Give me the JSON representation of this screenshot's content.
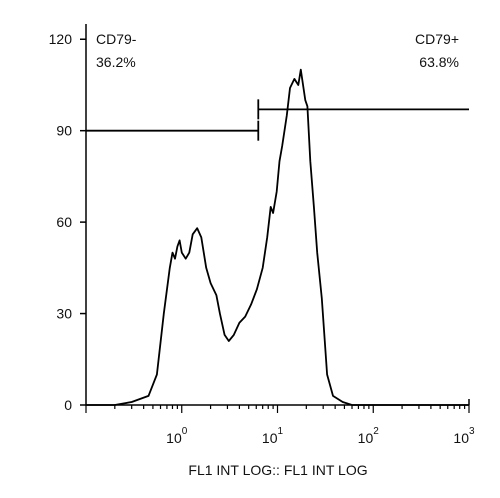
{
  "chart_data": {
    "type": "area",
    "title": "",
    "xlabel": "FL1 INT LOG:: FL1 INT LOG",
    "ylabel": "",
    "x_scale": "log",
    "xlim": [
      0.1,
      1000
    ],
    "ylim": [
      0,
      125
    ],
    "grid": false,
    "x_ticks": [
      {
        "value": 1,
        "base": "10",
        "exp": "0"
      },
      {
        "value": 10,
        "base": "10",
        "exp": "1"
      },
      {
        "value": 100,
        "base": "10",
        "exp": "2"
      },
      {
        "value": 1000,
        "base": "10",
        "exp": "3"
      }
    ],
    "y_ticks": [
      0,
      30,
      60,
      90,
      120
    ],
    "series": [
      {
        "values": [
          [
            0.1,
            0
          ],
          [
            0.2,
            0
          ],
          [
            0.3,
            1
          ],
          [
            0.45,
            3
          ],
          [
            0.55,
            10
          ],
          [
            0.65,
            30
          ],
          [
            0.75,
            45
          ],
          [
            0.8,
            50
          ],
          [
            0.85,
            48
          ],
          [
            0.9,
            52
          ],
          [
            0.95,
            54
          ],
          [
            1.0,
            50
          ],
          [
            1.1,
            48
          ],
          [
            1.2,
            50
          ],
          [
            1.3,
            56
          ],
          [
            1.45,
            58
          ],
          [
            1.6,
            55
          ],
          [
            1.8,
            45
          ],
          [
            2.0,
            40
          ],
          [
            2.3,
            36
          ],
          [
            2.5,
            30
          ],
          [
            2.8,
            23
          ],
          [
            3.1,
            21
          ],
          [
            3.5,
            23
          ],
          [
            4.0,
            27
          ],
          [
            4.6,
            29
          ],
          [
            5.3,
            33
          ],
          [
            6.1,
            38
          ],
          [
            7.0,
            45
          ],
          [
            7.8,
            55
          ],
          [
            8.5,
            65
          ],
          [
            9.0,
            63
          ],
          [
            9.8,
            70
          ],
          [
            10.5,
            80
          ],
          [
            11.2,
            85
          ],
          [
            12.5,
            95
          ],
          [
            13.5,
            104
          ],
          [
            15.0,
            107
          ],
          [
            16.5,
            105
          ],
          [
            17.5,
            110
          ],
          [
            19.5,
            100
          ],
          [
            20.5,
            98
          ],
          [
            22.0,
            80
          ],
          [
            24.0,
            65
          ],
          [
            26.0,
            50
          ],
          [
            29.0,
            35
          ],
          [
            33.0,
            10
          ],
          [
            38.0,
            3
          ],
          [
            48.0,
            1
          ],
          [
            60.0,
            0
          ],
          [
            100.0,
            0
          ],
          [
            1000.0,
            0
          ]
        ]
      }
    ],
    "gates": [
      {
        "name": "CD79-",
        "percent": "36.2%",
        "x_start": 0.1,
        "x_end": 6.3,
        "y": 90
      },
      {
        "name": "CD79+",
        "percent": "63.8%",
        "x_start": 6.3,
        "x_end": 1000,
        "y": 97
      }
    ]
  }
}
